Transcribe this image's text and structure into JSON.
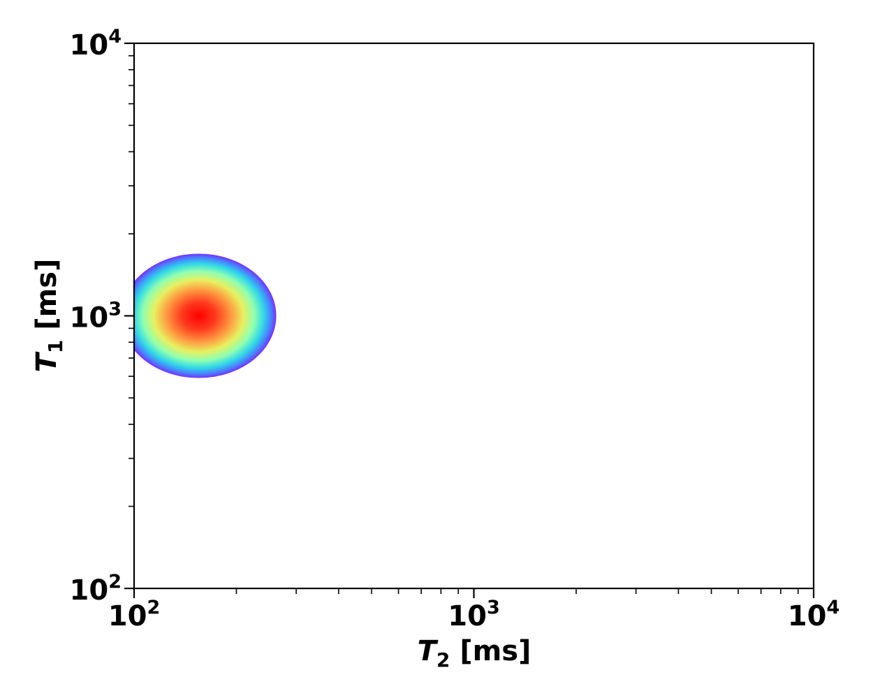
{
  "chart_data": {
    "type": "heatmap",
    "title": "",
    "xlabel": {
      "symbol": "T",
      "subscript": "2",
      "unit": " [ms]"
    },
    "ylabel": {
      "symbol": "T",
      "subscript": "1",
      "unit": " [ms]"
    },
    "x_scale": "log",
    "y_scale": "log",
    "xlim": [
      100,
      10000
    ],
    "ylim": [
      100,
      10000
    ],
    "x_ticks": [
      {
        "value": 100,
        "base": "10",
        "exp": "2"
      },
      {
        "value": 1000,
        "base": "10",
        "exp": "3"
      },
      {
        "value": 10000,
        "base": "10",
        "exp": "4"
      }
    ],
    "y_ticks": [
      {
        "value": 100,
        "base": "10",
        "exp": "2"
      },
      {
        "value": 1000,
        "base": "10",
        "exp": "3"
      },
      {
        "value": 10000,
        "base": "10",
        "exp": "4"
      }
    ],
    "grid": false,
    "colormap": "rainbow",
    "peaks": [
      {
        "t2_ms": 155,
        "t1_ms": 1000,
        "sigma_log10": 0.06,
        "amplitude": 1.0
      }
    ],
    "colors": {
      "peak_center": "#ff0000",
      "peak_mid": "#b4ff8c",
      "peak_edge": "#7a2fff",
      "axes": "#000000"
    }
  }
}
